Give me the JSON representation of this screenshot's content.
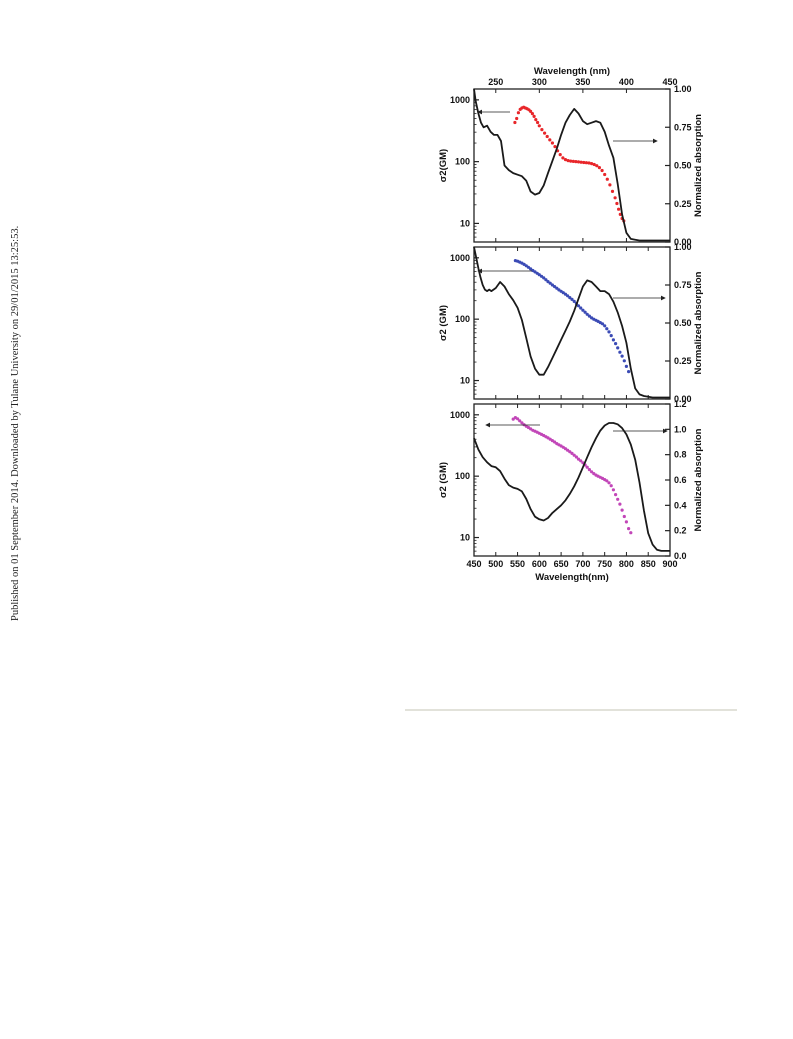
{
  "side_note": "Published on 01 September 2014. Downloaded by Tulane University on 29/01/2015 13:25:53.",
  "colors": {
    "red": "#e8262a",
    "blue": "#3b4bb5",
    "magenta": "#c246b8",
    "line": "#1a1a1a",
    "axis": "#222222",
    "divider": "#e2e2da"
  },
  "chart_data": [
    {
      "type": "scatter",
      "panel": "top",
      "top_axis": {
        "label": "Wavelength (nm)",
        "range": [
          225,
          450
        ],
        "ticks": [
          "250",
          "300",
          "350",
          "400",
          "450"
        ]
      },
      "left_axis": {
        "label": "σ2(GM)",
        "scale": "log",
        "range": [
          5,
          1500
        ],
        "ticks": [
          "10",
          "100",
          "1000"
        ]
      },
      "right_axis": {
        "label": "Normalized absorption",
        "range": [
          0,
          1.0
        ],
        "ticks": [
          "0.00",
          "0.25",
          "0.50",
          "0.75",
          "1.00"
        ]
      },
      "series": [
        {
          "kind": "scatter",
          "axis": "left",
          "color": "red",
          "x": [
            272,
            274,
            276,
            278,
            280,
            282,
            284,
            286,
            288,
            290,
            292,
            294,
            296,
            298,
            300,
            303,
            306,
            309,
            312,
            315,
            318,
            321,
            324,
            327,
            330,
            333,
            336,
            339,
            342,
            345,
            348,
            351,
            354,
            357,
            360,
            363,
            366,
            369,
            372,
            375,
            378,
            381,
            384,
            387,
            389,
            391,
            393,
            395,
            397
          ],
          "y": [
            430,
            500,
            620,
            700,
            740,
            760,
            740,
            720,
            690,
            650,
            600,
            540,
            480,
            430,
            380,
            330,
            290,
            255,
            225,
            200,
            175,
            150,
            130,
            115,
            108,
            104,
            102,
            101,
            100,
            99,
            98,
            97,
            96,
            95,
            93,
            90,
            86,
            80,
            72,
            62,
            52,
            42,
            33,
            26,
            21,
            17,
            14,
            12,
            11
          ]
        },
        {
          "kind": "line",
          "axis": "right",
          "color": "line",
          "x": [
            225,
            227,
            230,
            233,
            236,
            240,
            244,
            248,
            252,
            256,
            260,
            265,
            270,
            275,
            280,
            285,
            290,
            295,
            300,
            305,
            310,
            315,
            320,
            325,
            330,
            335,
            340,
            345,
            350,
            355,
            360,
            365,
            370,
            375,
            380,
            385,
            390,
            395,
            400,
            405,
            410,
            415,
            420,
            430,
            440,
            450
          ],
          "y": [
            1.0,
            0.92,
            0.84,
            0.78,
            0.75,
            0.76,
            0.72,
            0.7,
            0.7,
            0.66,
            0.5,
            0.47,
            0.45,
            0.44,
            0.43,
            0.4,
            0.33,
            0.31,
            0.32,
            0.37,
            0.45,
            0.53,
            0.61,
            0.7,
            0.78,
            0.83,
            0.87,
            0.84,
            0.79,
            0.77,
            0.78,
            0.79,
            0.78,
            0.72,
            0.63,
            0.55,
            0.38,
            0.18,
            0.06,
            0.02,
            0.015,
            0.01,
            0.01,
            0.01,
            0.01,
            0.01
          ]
        }
      ]
    },
    {
      "type": "scatter",
      "panel": "middle",
      "left_axis": {
        "label": "σ2 (GM)",
        "scale": "log",
        "range": [
          5,
          1500
        ],
        "ticks": [
          "10",
          "100",
          "1000"
        ]
      },
      "right_axis": {
        "label": "Normalized absorption",
        "range": [
          0,
          1.0
        ],
        "ticks": [
          "0.00",
          "0.25",
          "0.50",
          "0.75",
          "1.00"
        ]
      },
      "series": [
        {
          "kind": "scatter",
          "axis": "left",
          "color": "blue",
          "x": [
            545,
            550,
            555,
            560,
            565,
            570,
            575,
            580,
            585,
            590,
            595,
            600,
            605,
            610,
            615,
            620,
            625,
            630,
            635,
            640,
            645,
            650,
            655,
            660,
            665,
            670,
            675,
            680,
            685,
            690,
            695,
            700,
            705,
            710,
            715,
            720,
            725,
            730,
            735,
            740,
            745,
            750,
            755,
            760,
            765,
            770,
            775,
            780,
            785,
            790,
            795,
            800,
            805
          ],
          "y": [
            900,
            880,
            850,
            820,
            780,
            740,
            700,
            660,
            620,
            590,
            560,
            530,
            500,
            470,
            440,
            410,
            385,
            360,
            340,
            320,
            300,
            285,
            270,
            255,
            240,
            225,
            210,
            195,
            180,
            165,
            152,
            140,
            130,
            120,
            112,
            105,
            100,
            96,
            92,
            88,
            84,
            78,
            70,
            62,
            54,
            46,
            40,
            34,
            29,
            25,
            21,
            17,
            14
          ]
        },
        {
          "kind": "line",
          "axis": "right",
          "color": "line",
          "x": [
            450,
            455,
            460,
            465,
            470,
            475,
            480,
            485,
            490,
            500,
            510,
            520,
            530,
            540,
            550,
            560,
            570,
            580,
            590,
            600,
            610,
            620,
            630,
            640,
            650,
            660,
            670,
            680,
            690,
            700,
            710,
            720,
            730,
            740,
            750,
            760,
            770,
            780,
            790,
            800,
            810,
            820,
            830,
            840,
            860,
            880,
            900
          ],
          "y": [
            1.0,
            0.93,
            0.86,
            0.8,
            0.75,
            0.72,
            0.71,
            0.72,
            0.71,
            0.73,
            0.77,
            0.74,
            0.69,
            0.65,
            0.6,
            0.52,
            0.4,
            0.28,
            0.2,
            0.16,
            0.16,
            0.21,
            0.27,
            0.33,
            0.39,
            0.45,
            0.51,
            0.58,
            0.66,
            0.74,
            0.78,
            0.77,
            0.74,
            0.71,
            0.71,
            0.69,
            0.64,
            0.57,
            0.48,
            0.37,
            0.2,
            0.07,
            0.03,
            0.02,
            0.01,
            0.01,
            0.01
          ]
        }
      ]
    },
    {
      "type": "scatter",
      "panel": "bottom",
      "bottom_axis": {
        "label": "Wavelength(nm)",
        "range": [
          450,
          900
        ],
        "ticks": [
          "450",
          "500",
          "550",
          "600",
          "650",
          "700",
          "750",
          "800",
          "850",
          "900"
        ]
      },
      "left_axis": {
        "label": "σ2 (GM)",
        "scale": "log",
        "range": [
          5,
          1500
        ],
        "ticks": [
          "10",
          "100",
          "1000"
        ]
      },
      "right_axis": {
        "label": "Normalized absorption",
        "range": [
          0,
          1.2
        ],
        "ticks": [
          "0.0",
          "0.2",
          "0.4",
          "0.6",
          "0.8",
          "1.0",
          "1.2"
        ]
      },
      "series": [
        {
          "kind": "scatter",
          "axis": "left",
          "color": "magenta",
          "x": [
            540,
            545,
            550,
            555,
            560,
            565,
            570,
            575,
            580,
            585,
            590,
            595,
            600,
            605,
            610,
            615,
            620,
            625,
            630,
            635,
            640,
            645,
            650,
            655,
            660,
            665,
            670,
            675,
            680,
            685,
            690,
            695,
            700,
            705,
            710,
            715,
            720,
            725,
            730,
            735,
            740,
            745,
            750,
            755,
            760,
            765,
            770,
            775,
            780,
            785,
            790,
            795,
            800,
            805,
            810
          ],
          "y": [
            850,
            900,
            860,
            800,
            740,
            690,
            650,
            620,
            590,
            560,
            540,
            520,
            500,
            480,
            460,
            440,
            420,
            400,
            380,
            360,
            340,
            325,
            310,
            295,
            280,
            265,
            250,
            235,
            220,
            205,
            190,
            178,
            165,
            152,
            140,
            128,
            118,
            110,
            104,
            100,
            96,
            92,
            88,
            84,
            78,
            70,
            60,
            50,
            42,
            35,
            28,
            22,
            18,
            14,
            12
          ]
        },
        {
          "kind": "line",
          "axis": "right",
          "color": "line",
          "x": [
            450,
            460,
            470,
            480,
            490,
            500,
            510,
            520,
            530,
            540,
            550,
            560,
            570,
            580,
            590,
            600,
            610,
            620,
            630,
            640,
            650,
            660,
            670,
            680,
            690,
            700,
            710,
            720,
            730,
            740,
            750,
            760,
            770,
            780,
            790,
            800,
            810,
            820,
            830,
            840,
            850,
            860,
            870,
            880,
            890,
            900
          ],
          "y": [
            0.93,
            0.84,
            0.78,
            0.74,
            0.71,
            0.7,
            0.67,
            0.61,
            0.56,
            0.54,
            0.53,
            0.51,
            0.45,
            0.37,
            0.31,
            0.29,
            0.28,
            0.3,
            0.34,
            0.37,
            0.4,
            0.44,
            0.49,
            0.55,
            0.62,
            0.7,
            0.78,
            0.86,
            0.93,
            0.99,
            1.03,
            1.05,
            1.05,
            1.04,
            1.01,
            0.96,
            0.88,
            0.76,
            0.58,
            0.36,
            0.18,
            0.09,
            0.05,
            0.04,
            0.04,
            0.04
          ]
        }
      ]
    }
  ]
}
